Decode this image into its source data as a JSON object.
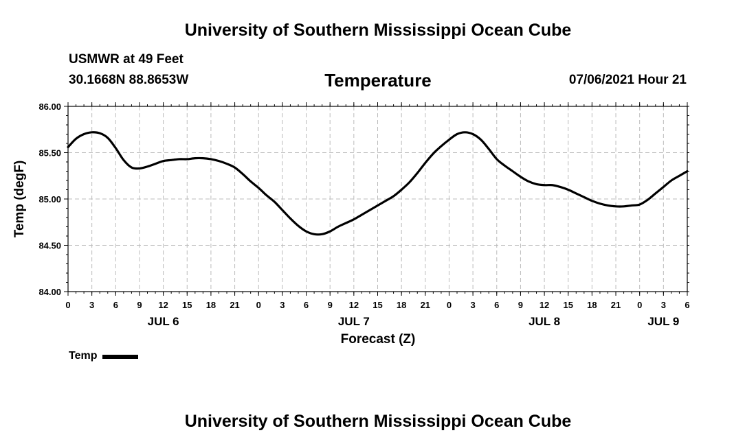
{
  "header": {
    "title_top": "University of Southern Mississippi Ocean Cube",
    "station": "USMWR at 49 Feet",
    "coords": "30.1668N  88.8653W",
    "chart_title": "Temperature",
    "datetime": "07/06/2021 Hour 21"
  },
  "footer": {
    "title_bottom": "University of Southern Mississippi Ocean Cube"
  },
  "legend": {
    "label": "Temp"
  },
  "colors": {
    "line": "#000000",
    "grid": "#bbbbbb",
    "axis": "#000000"
  },
  "chart_data": {
    "type": "line",
    "title": "Temperature",
    "xlabel": "Forecast (Z)",
    "ylabel": "Temp (degF)",
    "xlim": [
      0,
      78
    ],
    "ylim": [
      84.0,
      86.0
    ],
    "y_ticks": [
      "84.00",
      "84.50",
      "85.00",
      "85.50",
      "86.00"
    ],
    "y_tick_values": [
      84.0,
      84.5,
      85.0,
      85.5,
      86.0
    ],
    "x_tick_labels": [
      "0",
      "3",
      "6",
      "9",
      "12",
      "15",
      "18",
      "21",
      "0",
      "3",
      "6",
      "9",
      "12",
      "15",
      "18",
      "21",
      "0",
      "3",
      "6",
      "9",
      "12",
      "15",
      "18",
      "21",
      "0",
      "3",
      "6"
    ],
    "day_labels": [
      {
        "label": "JUL 6",
        "hour": 12
      },
      {
        "label": "JUL 7",
        "hour": 36
      },
      {
        "label": "JUL 8",
        "hour": 60
      },
      {
        "label": "JUL 9",
        "hour": 75
      }
    ],
    "grid": true,
    "series": [
      {
        "name": "Temp",
        "x": [
          0,
          1,
          2,
          3,
          4,
          5,
          6,
          7,
          8,
          9,
          10,
          11,
          12,
          13,
          14,
          15,
          16,
          17,
          18,
          19,
          20,
          21,
          22,
          23,
          24,
          25,
          26,
          27,
          28,
          29,
          30,
          31,
          32,
          33,
          34,
          35,
          36,
          37,
          38,
          39,
          40,
          41,
          42,
          43,
          44,
          45,
          46,
          47,
          48,
          49,
          50,
          51,
          52,
          53,
          54,
          55,
          56,
          57,
          58,
          59,
          60,
          61,
          62,
          63,
          64,
          65,
          66,
          67,
          68,
          69,
          70,
          71,
          72,
          73,
          74,
          75,
          76,
          77,
          78
        ],
        "values": [
          85.56,
          85.65,
          85.7,
          85.72,
          85.71,
          85.66,
          85.55,
          85.42,
          85.34,
          85.33,
          85.35,
          85.38,
          85.41,
          85.42,
          85.43,
          85.43,
          85.44,
          85.44,
          85.43,
          85.41,
          85.38,
          85.34,
          85.27,
          85.19,
          85.12,
          85.04,
          84.97,
          84.88,
          84.79,
          84.71,
          84.65,
          84.62,
          84.62,
          84.65,
          84.7,
          84.74,
          84.78,
          84.83,
          84.88,
          84.93,
          84.98,
          85.03,
          85.1,
          85.18,
          85.28,
          85.39,
          85.49,
          85.57,
          85.64,
          85.7,
          85.72,
          85.7,
          85.64,
          85.54,
          85.43,
          85.36,
          85.3,
          85.24,
          85.19,
          85.16,
          85.15,
          85.15,
          85.13,
          85.1,
          85.06,
          85.02,
          84.98,
          84.95,
          84.93,
          84.92,
          84.92,
          84.93,
          84.94,
          84.99,
          85.06,
          85.13,
          85.2,
          85.25,
          85.3
        ]
      }
    ]
  }
}
